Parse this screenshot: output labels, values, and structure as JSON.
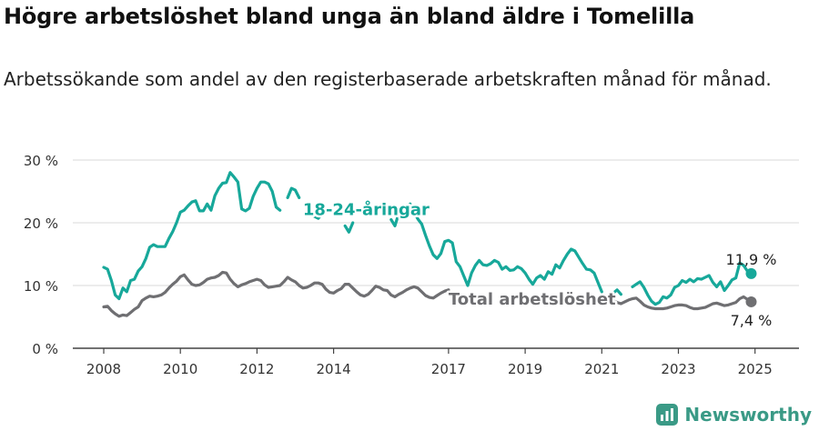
{
  "title": "Högre arbetslöshet bland unga än bland äldre i Tomelilla",
  "subtitle": "Arbetssökande som andel av den registerbaserade arbetskraften månad för månad.",
  "brand": "Newsworthy",
  "colors": {
    "youth": "#17a89a",
    "total": "#6f6f72",
    "grid": "#d9d9d9",
    "axis": "#444444",
    "brand": "#3a9a86"
  },
  "chart_data": {
    "type": "line",
    "ylim": [
      0,
      30
    ],
    "xlim": [
      2007.5,
      2025.7
    ],
    "grid": true,
    "y_ticks": [
      {
        "value": 0,
        "label": "0 %"
      },
      {
        "value": 10,
        "label": "10 %"
      },
      {
        "value": 20,
        "label": "20 %"
      },
      {
        "value": 30,
        "label": "30 %"
      }
    ],
    "x_ticks": [
      {
        "value": 2008,
        "label": "2008"
      },
      {
        "value": 2010,
        "label": "2010"
      },
      {
        "value": 2012,
        "label": "2012"
      },
      {
        "value": 2014,
        "label": "2014"
      },
      {
        "value": 2017,
        "label": "2017"
      },
      {
        "value": 2019,
        "label": "2019"
      },
      {
        "value": 2021,
        "label": "2021"
      },
      {
        "value": 2023,
        "label": "2023"
      },
      {
        "value": 2025,
        "label": "2025"
      }
    ],
    "series": [
      {
        "name": "18-24-åringar",
        "color": "#17a89a",
        "end_label": "11,9 %",
        "points": [
          [
            2008.0,
            12.9
          ],
          [
            2008.1,
            12.6
          ],
          [
            2008.2,
            10.8
          ],
          [
            2008.3,
            8.5
          ],
          [
            2008.4,
            7.9
          ],
          [
            2008.5,
            9.6
          ],
          [
            2008.6,
            9.0
          ],
          [
            2008.7,
            10.8
          ],
          [
            2008.8,
            11.0
          ],
          [
            2008.9,
            12.3
          ],
          [
            2009.0,
            13.0
          ],
          [
            2009.1,
            14.3
          ],
          [
            2009.2,
            16.1
          ],
          [
            2009.3,
            16.5
          ],
          [
            2009.4,
            16.2
          ],
          [
            2009.5,
            16.2
          ],
          [
            2009.6,
            16.2
          ],
          [
            2009.7,
            17.5
          ],
          [
            2009.8,
            18.6
          ],
          [
            2009.9,
            20.0
          ],
          [
            2010.0,
            21.7
          ],
          [
            2010.1,
            22.0
          ],
          [
            2010.2,
            22.7
          ],
          [
            2010.3,
            23.3
          ],
          [
            2010.4,
            23.5
          ],
          [
            2010.5,
            21.9
          ],
          [
            2010.6,
            21.9
          ],
          [
            2010.7,
            23.0
          ],
          [
            2010.8,
            22.0
          ],
          [
            2010.9,
            24.3
          ],
          [
            2011.0,
            25.5
          ],
          [
            2011.1,
            26.3
          ],
          [
            2011.2,
            26.4
          ],
          [
            2011.3,
            28.0
          ],
          [
            2011.4,
            27.3
          ],
          [
            2011.5,
            26.5
          ],
          [
            2011.6,
            22.2
          ],
          [
            2011.7,
            21.9
          ],
          [
            2011.8,
            22.3
          ],
          [
            2011.9,
            24.2
          ],
          [
            2012.0,
            25.5
          ],
          [
            2012.1,
            26.5
          ],
          [
            2012.2,
            26.5
          ],
          [
            2012.3,
            26.2
          ],
          [
            2012.4,
            25.0
          ],
          [
            2012.5,
            22.5
          ],
          [
            2012.6,
            22.0
          ],
          null,
          [
            2012.8,
            24.0
          ],
          [
            2012.9,
            25.5
          ],
          [
            2013.0,
            25.2
          ],
          [
            2013.1,
            24.0
          ],
          null,
          [
            2013.5,
            21.0
          ],
          [
            2013.6,
            20.7
          ],
          [
            2013.7,
            21.5
          ],
          null,
          [
            2014.3,
            19.5
          ],
          [
            2014.4,
            18.5
          ],
          [
            2014.5,
            20.0
          ],
          null,
          [
            2015.5,
            20.5
          ],
          [
            2015.6,
            19.5
          ],
          [
            2015.7,
            21.5
          ],
          [
            2015.8,
            21.8
          ],
          [
            2015.9,
            22.3
          ],
          [
            2016.0,
            23.0
          ],
          [
            2016.1,
            21.8
          ],
          [
            2016.2,
            20.6
          ],
          [
            2016.3,
            19.8
          ],
          [
            2016.4,
            18.0
          ],
          [
            2016.5,
            16.3
          ],
          [
            2016.6,
            14.9
          ],
          [
            2016.7,
            14.3
          ],
          [
            2016.8,
            15.1
          ],
          [
            2016.9,
            17.0
          ],
          [
            2017.0,
            17.2
          ],
          [
            2017.1,
            16.8
          ],
          [
            2017.2,
            13.8
          ],
          [
            2017.3,
            13.0
          ],
          [
            2017.4,
            11.5
          ],
          [
            2017.5,
            10.0
          ],
          [
            2017.6,
            12.0
          ],
          [
            2017.7,
            13.2
          ],
          [
            2017.8,
            14.0
          ],
          [
            2017.9,
            13.3
          ],
          [
            2018.0,
            13.2
          ],
          [
            2018.1,
            13.5
          ],
          [
            2018.2,
            14.0
          ],
          [
            2018.3,
            13.7
          ],
          [
            2018.4,
            12.6
          ],
          [
            2018.5,
            13.0
          ],
          [
            2018.6,
            12.4
          ],
          [
            2018.7,
            12.5
          ],
          [
            2018.8,
            13.0
          ],
          [
            2018.9,
            12.7
          ],
          [
            2019.0,
            12.0
          ],
          [
            2019.1,
            11.0
          ],
          [
            2019.2,
            10.2
          ],
          [
            2019.3,
            11.2
          ],
          [
            2019.4,
            11.6
          ],
          [
            2019.5,
            11.0
          ],
          [
            2019.6,
            12.2
          ],
          [
            2019.7,
            11.8
          ],
          [
            2019.8,
            13.3
          ],
          [
            2019.9,
            12.8
          ],
          [
            2020.0,
            14.0
          ],
          [
            2020.1,
            15.0
          ],
          [
            2020.2,
            15.8
          ],
          [
            2020.3,
            15.5
          ],
          [
            2020.4,
            14.5
          ],
          [
            2020.5,
            13.5
          ],
          [
            2020.6,
            12.6
          ],
          [
            2020.7,
            12.5
          ],
          [
            2020.8,
            12.0
          ],
          [
            2020.9,
            10.5
          ],
          [
            2021.0,
            9.0
          ],
          null,
          [
            2021.3,
            8.8
          ],
          [
            2021.4,
            9.3
          ],
          [
            2021.5,
            8.6
          ],
          null,
          [
            2021.8,
            9.8
          ],
          [
            2021.9,
            10.2
          ],
          [
            2022.0,
            10.6
          ],
          [
            2022.1,
            9.7
          ],
          [
            2022.2,
            8.5
          ],
          [
            2022.3,
            7.5
          ],
          [
            2022.4,
            7.0
          ],
          [
            2022.5,
            7.3
          ],
          [
            2022.6,
            8.2
          ],
          [
            2022.7,
            8.0
          ],
          [
            2022.8,
            8.5
          ],
          [
            2022.9,
            9.7
          ],
          [
            2023.0,
            10.0
          ],
          [
            2023.1,
            10.8
          ],
          [
            2023.2,
            10.5
          ],
          [
            2023.3,
            11.0
          ],
          [
            2023.4,
            10.6
          ],
          [
            2023.5,
            11.1
          ],
          [
            2023.6,
            11.0
          ],
          [
            2023.7,
            11.3
          ],
          [
            2023.8,
            11.6
          ],
          [
            2023.9,
            10.5
          ],
          [
            2024.0,
            9.8
          ],
          [
            2024.1,
            10.6
          ],
          [
            2024.2,
            9.2
          ],
          [
            2024.3,
            10.0
          ],
          [
            2024.4,
            10.9
          ],
          [
            2024.5,
            11.2
          ],
          [
            2024.6,
            13.6
          ],
          [
            2024.7,
            13.2
          ],
          [
            2024.8,
            12.3
          ],
          [
            2024.9,
            11.9
          ]
        ]
      },
      {
        "name": "Total arbetslöshet",
        "color": "#6f6f72",
        "end_label": "7,4 %",
        "points": [
          [
            2008.0,
            6.6
          ],
          [
            2008.1,
            6.7
          ],
          [
            2008.2,
            6.0
          ],
          [
            2008.3,
            5.5
          ],
          [
            2008.4,
            5.1
          ],
          [
            2008.5,
            5.3
          ],
          [
            2008.6,
            5.2
          ],
          [
            2008.7,
            5.7
          ],
          [
            2008.8,
            6.2
          ],
          [
            2008.9,
            6.6
          ],
          [
            2009.0,
            7.6
          ],
          [
            2009.1,
            8.0
          ],
          [
            2009.2,
            8.3
          ],
          [
            2009.3,
            8.2
          ],
          [
            2009.4,
            8.3
          ],
          [
            2009.5,
            8.5
          ],
          [
            2009.6,
            8.9
          ],
          [
            2009.7,
            9.6
          ],
          [
            2009.8,
            10.2
          ],
          [
            2009.9,
            10.7
          ],
          [
            2010.0,
            11.4
          ],
          [
            2010.1,
            11.7
          ],
          [
            2010.2,
            10.9
          ],
          [
            2010.3,
            10.2
          ],
          [
            2010.4,
            10.0
          ],
          [
            2010.5,
            10.1
          ],
          [
            2010.6,
            10.5
          ],
          [
            2010.7,
            11.0
          ],
          [
            2010.8,
            11.2
          ],
          [
            2010.9,
            11.3
          ],
          [
            2011.0,
            11.6
          ],
          [
            2011.1,
            12.1
          ],
          [
            2011.2,
            12.0
          ],
          [
            2011.3,
            11.0
          ],
          [
            2011.4,
            10.3
          ],
          [
            2011.5,
            9.8
          ],
          [
            2011.6,
            10.1
          ],
          [
            2011.7,
            10.3
          ],
          [
            2011.8,
            10.6
          ],
          [
            2011.9,
            10.8
          ],
          [
            2012.0,
            11.0
          ],
          [
            2012.1,
            10.8
          ],
          [
            2012.2,
            10.1
          ],
          [
            2012.3,
            9.7
          ],
          [
            2012.4,
            9.8
          ],
          [
            2012.5,
            9.9
          ],
          [
            2012.6,
            10.0
          ],
          [
            2012.7,
            10.6
          ],
          [
            2012.8,
            11.3
          ],
          [
            2012.9,
            10.9
          ],
          [
            2013.0,
            10.6
          ],
          [
            2013.1,
            10.0
          ],
          [
            2013.2,
            9.6
          ],
          [
            2013.3,
            9.7
          ],
          [
            2013.4,
            10.0
          ],
          [
            2013.5,
            10.4
          ],
          [
            2013.6,
            10.4
          ],
          [
            2013.7,
            10.2
          ],
          [
            2013.8,
            9.4
          ],
          [
            2013.9,
            8.9
          ],
          [
            2014.0,
            8.8
          ],
          [
            2014.1,
            9.2
          ],
          [
            2014.2,
            9.5
          ],
          [
            2014.3,
            10.2
          ],
          [
            2014.4,
            10.2
          ],
          [
            2014.5,
            9.6
          ],
          [
            2014.6,
            9.0
          ],
          [
            2014.7,
            8.5
          ],
          [
            2014.8,
            8.3
          ],
          [
            2014.9,
            8.6
          ],
          [
            2015.0,
            9.2
          ],
          [
            2015.1,
            9.9
          ],
          [
            2015.2,
            9.7
          ],
          [
            2015.3,
            9.3
          ],
          [
            2015.4,
            9.2
          ],
          [
            2015.5,
            8.5
          ],
          [
            2015.6,
            8.2
          ],
          [
            2015.7,
            8.6
          ],
          [
            2015.8,
            8.9
          ],
          [
            2015.9,
            9.3
          ],
          [
            2016.0,
            9.6
          ],
          [
            2016.1,
            9.8
          ],
          [
            2016.2,
            9.6
          ],
          [
            2016.3,
            9.0
          ],
          [
            2016.4,
            8.4
          ],
          [
            2016.5,
            8.1
          ],
          [
            2016.6,
            8.0
          ],
          [
            2016.7,
            8.4
          ],
          [
            2016.8,
            8.8
          ],
          [
            2016.9,
            9.1
          ],
          [
            2017.0,
            9.3
          ],
          null,
          [
            2021.2,
            7.9
          ],
          [
            2021.3,
            7.6
          ],
          [
            2021.4,
            7.3
          ],
          [
            2021.5,
            7.1
          ],
          [
            2021.6,
            7.4
          ],
          [
            2021.7,
            7.7
          ],
          [
            2021.8,
            7.9
          ],
          [
            2021.9,
            8.0
          ],
          [
            2022.0,
            7.5
          ],
          [
            2022.1,
            6.9
          ],
          [
            2022.2,
            6.6
          ],
          [
            2022.3,
            6.4
          ],
          [
            2022.4,
            6.3
          ],
          [
            2022.5,
            6.3
          ],
          [
            2022.6,
            6.3
          ],
          [
            2022.7,
            6.4
          ],
          [
            2022.8,
            6.6
          ],
          [
            2022.9,
            6.8
          ],
          [
            2023.0,
            6.9
          ],
          [
            2023.1,
            6.9
          ],
          [
            2023.2,
            6.8
          ],
          [
            2023.3,
            6.5
          ],
          [
            2023.4,
            6.3
          ],
          [
            2023.5,
            6.3
          ],
          [
            2023.6,
            6.4
          ],
          [
            2023.7,
            6.5
          ],
          [
            2023.8,
            6.8
          ],
          [
            2023.9,
            7.1
          ],
          [
            2024.0,
            7.2
          ],
          [
            2024.1,
            7.0
          ],
          [
            2024.2,
            6.8
          ],
          [
            2024.3,
            6.9
          ],
          [
            2024.4,
            7.1
          ],
          [
            2024.5,
            7.3
          ],
          [
            2024.6,
            7.9
          ],
          [
            2024.7,
            8.2
          ],
          [
            2024.8,
            7.8
          ],
          [
            2024.9,
            7.4
          ]
        ]
      }
    ],
    "annotations": [
      {
        "series": "18-24-åringar",
        "text": "18-24-åringar",
        "x": 2013.2,
        "y": 22.1
      },
      {
        "series": "Total arbetslöshet",
        "text": "Total arbetslöshet",
        "x": 2017.0,
        "y": 7.8
      },
      {
        "series": "18-24-åringar",
        "text": "11,9 %",
        "x": 2024.9,
        "y": 14.2
      },
      {
        "series": "Total arbetslöshet",
        "text": "7,4 %",
        "x": 2024.9,
        "y": 4.5
      }
    ]
  }
}
